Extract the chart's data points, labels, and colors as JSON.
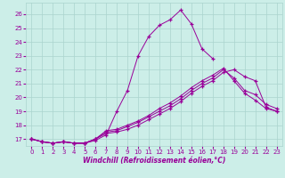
{
  "xlabel": "Windchill (Refroidissement éolien,°C)",
  "ylabel": "",
  "background_color": "#cceee8",
  "grid_color": "#aad4ce",
  "line_color": "#990099",
  "xlim": [
    -0.5,
    23.5
  ],
  "ylim": [
    16.5,
    26.8
  ],
  "yticks": [
    17,
    18,
    19,
    20,
    21,
    22,
    23,
    24,
    25,
    26
  ],
  "xticks": [
    0,
    1,
    2,
    3,
    4,
    5,
    6,
    7,
    8,
    9,
    10,
    11,
    12,
    13,
    14,
    15,
    16,
    17,
    18,
    19,
    20,
    21,
    22,
    23
  ],
  "series": [
    {
      "x": [
        0,
        1,
        2,
        3,
        4,
        5,
        6,
        7,
        8,
        9,
        10,
        11,
        12,
        13,
        14,
        15,
        16,
        17
      ],
      "y": [
        17.0,
        16.8,
        16.7,
        16.8,
        16.7,
        16.7,
        16.9,
        17.3,
        19.0,
        20.5,
        23.0,
        24.4,
        25.2,
        25.6,
        26.3,
        25.3,
        23.5,
        22.8
      ]
    },
    {
      "x": [
        0,
        1,
        2,
        3,
        4,
        5,
        6,
        7,
        8,
        9,
        10,
        11,
        12,
        13,
        14,
        15,
        16,
        17,
        18,
        19,
        20,
        21,
        22,
        23
      ],
      "y": [
        17.0,
        16.8,
        16.7,
        16.8,
        16.7,
        16.7,
        17.0,
        17.6,
        17.7,
        18.0,
        18.3,
        18.7,
        19.2,
        19.6,
        20.1,
        20.7,
        21.2,
        21.6,
        22.1,
        21.2,
        20.3,
        19.8,
        19.2,
        19.0
      ]
    },
    {
      "x": [
        0,
        1,
        2,
        3,
        4,
        5,
        6,
        7,
        8,
        9,
        10,
        11,
        12,
        13,
        14,
        15,
        16,
        17,
        18,
        19,
        20,
        21,
        22,
        23
      ],
      "y": [
        17.0,
        16.8,
        16.7,
        16.8,
        16.7,
        16.7,
        17.0,
        17.5,
        17.6,
        17.9,
        18.2,
        18.6,
        19.0,
        19.4,
        19.9,
        20.5,
        21.0,
        21.4,
        22.0,
        21.4,
        20.5,
        20.2,
        19.5,
        19.2
      ]
    },
    {
      "x": [
        0,
        1,
        2,
        3,
        4,
        5,
        6,
        7,
        8,
        9,
        10,
        11,
        12,
        13,
        14,
        15,
        16,
        17,
        18,
        19,
        20,
        21,
        22,
        23
      ],
      "y": [
        17.0,
        16.8,
        16.7,
        16.8,
        16.7,
        16.7,
        17.0,
        17.4,
        17.5,
        17.7,
        18.0,
        18.4,
        18.8,
        19.2,
        19.7,
        20.3,
        20.8,
        21.2,
        21.8,
        22.0,
        21.5,
        21.2,
        19.3,
        19.0
      ]
    }
  ]
}
